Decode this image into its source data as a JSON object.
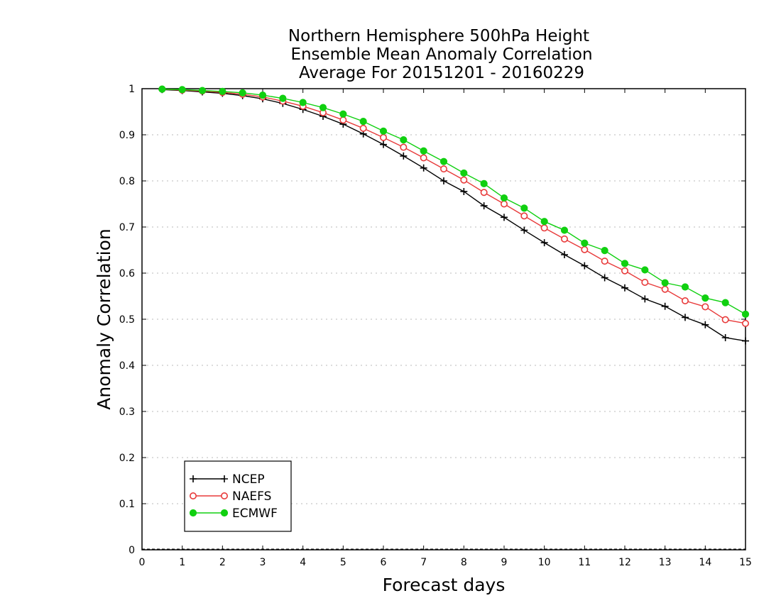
{
  "chart_data": {
    "type": "line",
    "title_lines": [
      "Northern Hemisphere 500hPa Height",
      "Ensemble Mean Anomaly Correlation",
      "Average For 20151201 - 20160229"
    ],
    "xlabel": "Forecast days",
    "ylabel": "Anomaly Correlation",
    "xlim": [
      0,
      15
    ],
    "ylim": [
      0,
      1
    ],
    "xticks": [
      "0",
      "1",
      "2",
      "3",
      "4",
      "5",
      "6",
      "7",
      "8",
      "9",
      "10",
      "11",
      "12",
      "13",
      "14",
      "15"
    ],
    "yticks": [
      "0",
      "0.1",
      "0.2",
      "0.3",
      "0.4",
      "0.5",
      "0.6",
      "0.7",
      "0.8",
      "0.9",
      "1"
    ],
    "grid": true,
    "legend_position": "bottom-left",
    "x": [
      0.5,
      1,
      1.5,
      2,
      2.5,
      3,
      3.5,
      4,
      4.5,
      5,
      5.5,
      6,
      6.5,
      7,
      7.5,
      8,
      8.5,
      9,
      9.5,
      10,
      10.5,
      11,
      11.5,
      12,
      12.5,
      13,
      13.5,
      14,
      14.5,
      15
    ],
    "series": [
      {
        "name": "NCEP",
        "color": "#000000",
        "marker": "plus",
        "values": [
          0.998,
          0.996,
          0.993,
          0.99,
          0.985,
          0.978,
          0.968,
          0.955,
          0.94,
          0.923,
          0.902,
          0.879,
          0.854,
          0.828,
          0.8,
          0.777,
          0.746,
          0.721,
          0.693,
          0.666,
          0.64,
          0.616,
          0.59,
          0.568,
          0.544,
          0.528,
          0.504,
          0.488,
          0.46,
          0.453
        ]
      },
      {
        "name": "NAEFS",
        "color": "#e83a3a",
        "marker": "open-circle",
        "values": [
          0.999,
          0.997,
          0.995,
          0.992,
          0.988,
          0.982,
          0.973,
          0.962,
          0.948,
          0.932,
          0.914,
          0.894,
          0.873,
          0.85,
          0.826,
          0.802,
          0.775,
          0.75,
          0.724,
          0.698,
          0.674,
          0.651,
          0.626,
          0.605,
          0.58,
          0.565,
          0.54,
          0.527,
          0.499,
          0.491
        ]
      },
      {
        "name": "ECMWF",
        "color": "#10d010",
        "marker": "filled-circle",
        "values": [
          0.999,
          0.998,
          0.996,
          0.994,
          0.991,
          0.986,
          0.979,
          0.97,
          0.959,
          0.945,
          0.929,
          0.908,
          0.889,
          0.865,
          0.842,
          0.817,
          0.794,
          0.763,
          0.741,
          0.712,
          0.693,
          0.665,
          0.649,
          0.621,
          0.607,
          0.579,
          0.57,
          0.546,
          0.536,
          0.511
        ]
      }
    ]
  }
}
